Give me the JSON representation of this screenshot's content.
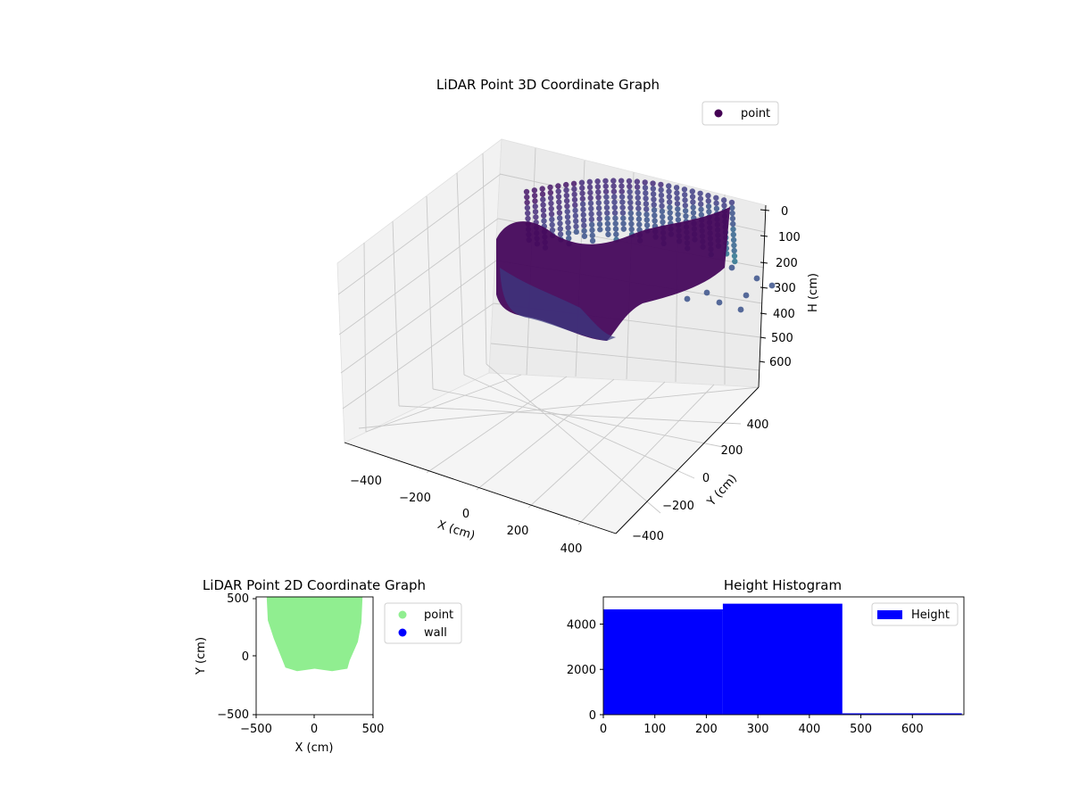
{
  "chart_data": [
    {
      "type": "scatter",
      "title": "LiDAR Point 3D Coordinate Graph",
      "xlabel": "X (cm)",
      "ylabel": "Y (cm)",
      "zlabel": "H (cm)",
      "xlim": [
        -500,
        500
      ],
      "ylim": [
        -500,
        500
      ],
      "zlim": [
        700,
        0
      ],
      "x_ticks": [
        "−400",
        "−200",
        "0",
        "200",
        "400"
      ],
      "y_ticks": [
        "−400",
        "−200",
        "0",
        "200",
        "400"
      ],
      "z_ticks": [
        "0",
        "100",
        "200",
        "300",
        "400",
        "500",
        "600"
      ],
      "legend": {
        "entries": [
          {
            "label": "point",
            "color": "#440154"
          }
        ],
        "position": "top-right"
      },
      "colormap": "viridis",
      "series": [
        {
          "name": "point",
          "shape": "room-perimeter shell",
          "x_range": [
            -400,
            430
          ],
          "y_range": [
            -130,
            500
          ],
          "h_range": [
            0,
            470
          ]
        }
      ]
    },
    {
      "type": "scatter",
      "title": "LiDAR Point 2D Coordinate Graph",
      "xlabel": "X (cm)",
      "ylabel": "Y (cm)",
      "xlim": [
        -500,
        500
      ],
      "ylim": [
        -500,
        500
      ],
      "x_ticks": [
        "−500",
        "0",
        "500"
      ],
      "y_ticks": [
        "−500",
        "0",
        "500"
      ],
      "legend": {
        "entries": [
          {
            "label": "point",
            "color": "#90ee90"
          },
          {
            "label": "wall",
            "color": "#0000ff"
          }
        ],
        "position": "outside-right"
      },
      "series": [
        {
          "name": "point",
          "color": "#90ee90",
          "outline": [
            [
              -410,
              500
            ],
            [
              410,
              500
            ],
            [
              400,
              280
            ],
            [
              370,
              120
            ],
            [
              300,
              -40
            ],
            [
              280,
              -110
            ],
            [
              150,
              -130
            ],
            [
              0,
              -110
            ],
            [
              -150,
              -130
            ],
            [
              -250,
              -100
            ],
            [
              -290,
              0
            ],
            [
              -350,
              150
            ],
            [
              -400,
              300
            ]
          ]
        },
        {
          "name": "wall",
          "color": "#0000ff",
          "points": []
        }
      ]
    },
    {
      "type": "bar",
      "title": "Height Histogram",
      "xlabel": "",
      "ylabel": "",
      "xlim": [
        0,
        700
      ],
      "ylim": [
        0,
        5200
      ],
      "x_ticks": [
        "0",
        "100",
        "200",
        "300",
        "400",
        "500",
        "600"
      ],
      "y_ticks": [
        "0",
        "2000",
        "4000"
      ],
      "legend": {
        "entries": [
          {
            "label": "Height",
            "color": "#0000ff"
          }
        ],
        "position": "top-right"
      },
      "bins": [
        {
          "x0": 0,
          "x1": 232,
          "count": 4650
        },
        {
          "x0": 232,
          "x1": 464,
          "count": 4900
        },
        {
          "x0": 464,
          "x1": 696,
          "count": 60
        }
      ],
      "color": "#0000ff"
    }
  ]
}
